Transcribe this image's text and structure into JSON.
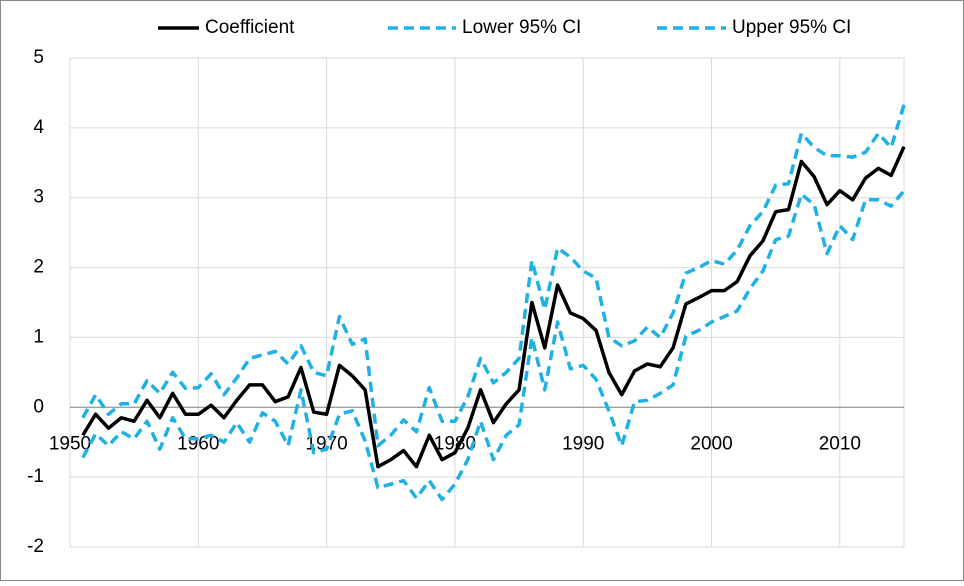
{
  "chart_data": {
    "type": "line",
    "x": [
      1951,
      1952,
      1953,
      1954,
      1955,
      1956,
      1957,
      1958,
      1959,
      1960,
      1961,
      1962,
      1963,
      1964,
      1965,
      1966,
      1967,
      1968,
      1969,
      1970,
      1971,
      1972,
      1973,
      1974,
      1975,
      1976,
      1977,
      1978,
      1979,
      1980,
      1981,
      1982,
      1983,
      1984,
      1985,
      1986,
      1987,
      1988,
      1989,
      1990,
      1991,
      1992,
      1993,
      1994,
      1995,
      1996,
      1997,
      1998,
      1999,
      2000,
      2001,
      2002,
      2003,
      2004,
      2005,
      2006,
      2007,
      2008,
      2009,
      2010,
      2011,
      2012,
      2013,
      2014,
      2015
    ],
    "series": [
      {
        "name": "Coefficient",
        "color": "#000000",
        "dash": false,
        "values": [
          -0.4,
          -0.1,
          -0.3,
          -0.15,
          -0.2,
          0.1,
          -0.15,
          0.2,
          -0.1,
          -0.1,
          0.03,
          -0.15,
          0.1,
          0.32,
          0.32,
          0.08,
          0.15,
          0.57,
          -0.07,
          -0.1,
          0.6,
          0.45,
          0.25,
          -0.85,
          -0.75,
          -0.62,
          -0.85,
          -0.4,
          -0.75,
          -0.65,
          -0.3,
          0.25,
          -0.22,
          0.05,
          0.25,
          1.5,
          0.85,
          1.75,
          1.35,
          1.27,
          1.1,
          0.5,
          0.18,
          0.52,
          0.62,
          0.58,
          0.85,
          1.48,
          1.57,
          1.67,
          1.67,
          1.8,
          2.17,
          2.38,
          2.8,
          2.83,
          3.52,
          3.3,
          2.9,
          3.1,
          2.97,
          3.28,
          3.42,
          3.32,
          3.73
        ]
      },
      {
        "name": "Lower 95% CI",
        "color": "#1fb0e6",
        "dash": true,
        "values": [
          -0.72,
          -0.38,
          -0.55,
          -0.35,
          -0.45,
          -0.2,
          -0.6,
          -0.15,
          -0.45,
          -0.45,
          -0.4,
          -0.5,
          -0.22,
          -0.5,
          -0.08,
          -0.2,
          -0.55,
          0.25,
          -0.65,
          -0.6,
          -0.1,
          -0.05,
          -0.48,
          -1.15,
          -1.1,
          -1.05,
          -1.3,
          -1.05,
          -1.32,
          -1.1,
          -0.75,
          -0.2,
          -0.75,
          -0.4,
          -0.25,
          1.0,
          0.25,
          1.22,
          0.55,
          0.6,
          0.4,
          -0.05,
          -0.55,
          0.08,
          0.1,
          0.2,
          0.32,
          1.02,
          1.1,
          1.22,
          1.3,
          1.38,
          1.7,
          1.95,
          2.4,
          2.45,
          3.05,
          2.9,
          2.2,
          2.6,
          2.4,
          2.97,
          2.97,
          2.88,
          3.1
        ]
      },
      {
        "name": "Upper 95% CI",
        "color": "#1fb0e6",
        "dash": true,
        "values": [
          -0.15,
          0.18,
          -0.1,
          0.05,
          0.05,
          0.38,
          0.2,
          0.5,
          0.27,
          0.28,
          0.48,
          0.18,
          0.42,
          0.7,
          0.75,
          0.8,
          0.62,
          0.88,
          0.5,
          0.45,
          1.3,
          0.9,
          0.98,
          -0.55,
          -0.4,
          -0.18,
          -0.35,
          0.28,
          -0.2,
          -0.2,
          0.15,
          0.7,
          0.35,
          0.5,
          0.7,
          2.1,
          1.4,
          2.28,
          2.15,
          1.95,
          1.85,
          1.0,
          0.88,
          0.95,
          1.15,
          1.0,
          1.35,
          1.92,
          2.0,
          2.1,
          2.05,
          2.25,
          2.6,
          2.8,
          3.18,
          3.2,
          3.92,
          3.72,
          3.6,
          3.6,
          3.58,
          3.65,
          3.92,
          3.72,
          4.33
        ]
      }
    ],
    "xlim": [
      1950,
      2015
    ],
    "xticks": [
      1950,
      1960,
      1970,
      1980,
      1990,
      2000,
      2010
    ],
    "ylim": [
      -2,
      5
    ],
    "yticks": [
      -2,
      -1,
      0,
      1,
      2,
      3,
      4,
      5
    ],
    "grid": true,
    "legend": "top"
  }
}
